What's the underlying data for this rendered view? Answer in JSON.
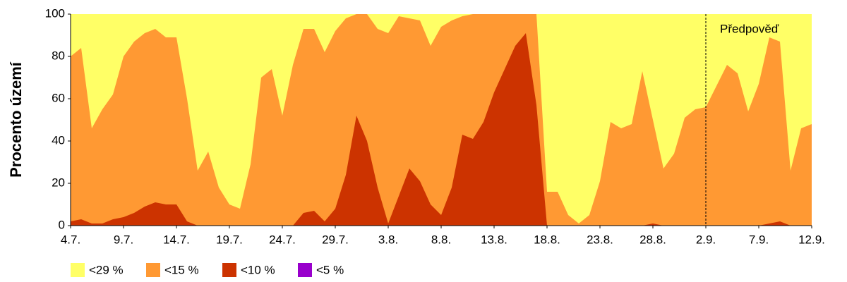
{
  "chart_data": {
    "type": "area",
    "y_label": "Procento území",
    "categories": [
      "4.7.",
      null,
      null,
      null,
      null,
      "9.7.",
      null,
      null,
      null,
      null,
      "14.7.",
      null,
      null,
      null,
      null,
      "19.7.",
      null,
      null,
      null,
      null,
      "24.7.",
      null,
      null,
      null,
      null,
      "29.7.",
      null,
      null,
      null,
      null,
      "3.8.",
      null,
      null,
      null,
      null,
      "8.8.",
      null,
      null,
      null,
      null,
      "13.8.",
      null,
      null,
      null,
      null,
      "18.8.",
      null,
      null,
      null,
      null,
      "23.8.",
      null,
      null,
      null,
      null,
      "28.8.",
      null,
      null,
      null,
      null,
      "2.9.",
      null,
      null,
      null,
      null,
      "7.9.",
      null,
      null,
      null,
      null,
      "12.9."
    ],
    "series": [
      {
        "name": "<29 %",
        "color": "#ffff66",
        "values": [
          100,
          100,
          100,
          100,
          100,
          100,
          100,
          100,
          100,
          100,
          100,
          100,
          100,
          100,
          100,
          100,
          100,
          100,
          100,
          100,
          100,
          100,
          100,
          100,
          100,
          100,
          100,
          100,
          100,
          100,
          100,
          100,
          100,
          100,
          100,
          100,
          100,
          100,
          100,
          100,
          100,
          100,
          100,
          100,
          100,
          100,
          100,
          100,
          100,
          100,
          100,
          100,
          100,
          100,
          100,
          100,
          100,
          100,
          100,
          100,
          100,
          100,
          100,
          100,
          100,
          100,
          100,
          100,
          100,
          100,
          100
        ]
      },
      {
        "name": "<15 %",
        "color": "#ff9933",
        "values": [
          80,
          84,
          46,
          55,
          62,
          80,
          87,
          91,
          93,
          89,
          89,
          60,
          26,
          35,
          18,
          10,
          8,
          29,
          70,
          74,
          52,
          76,
          93,
          93,
          82,
          92,
          98,
          100,
          100,
          93,
          91,
          99,
          98,
          97,
          85,
          94,
          97,
          99,
          100,
          100,
          100,
          100,
          100,
          100,
          100,
          16,
          16,
          5,
          1,
          5,
          21,
          49,
          46,
          48,
          73,
          50,
          27,
          34,
          51,
          55,
          56,
          66,
          76,
          72,
          54,
          67,
          89,
          87,
          26,
          46,
          48
        ]
      },
      {
        "name": "<10 %",
        "color": "#cc3300",
        "values": [
          2,
          3,
          1,
          1,
          3,
          4,
          6,
          9,
          11,
          10,
          10,
          2,
          0,
          0,
          0,
          0,
          0,
          0,
          0,
          0,
          0,
          0,
          6,
          7,
          2,
          8,
          24,
          52,
          40,
          18,
          1,
          14,
          27,
          21,
          10,
          5,
          18,
          43,
          41,
          49,
          63,
          74,
          85,
          91,
          57,
          0,
          0,
          0,
          0,
          0,
          0,
          0,
          0,
          0,
          0,
          1,
          0,
          0,
          0,
          0,
          0,
          0,
          0,
          0,
          0,
          0,
          1,
          2,
          0,
          0,
          0
        ]
      },
      {
        "name": "<5 %",
        "color": "#9900cc",
        "values": [
          0,
          0,
          0,
          0,
          0,
          0,
          0,
          0,
          0,
          0,
          0,
          0,
          0,
          0,
          0,
          0,
          0,
          0,
          0,
          0,
          0,
          0,
          0,
          0,
          0,
          0,
          0,
          0,
          0,
          0,
          0,
          0,
          0,
          0,
          0,
          0,
          0,
          0,
          0,
          0,
          0,
          0,
          0,
          0,
          0,
          0,
          0,
          0,
          0,
          0,
          0,
          0,
          0,
          0,
          0,
          0,
          0,
          0,
          0,
          0,
          0,
          0,
          0,
          0,
          0,
          0,
          0,
          0,
          0,
          0,
          0
        ]
      }
    ],
    "ylim": [
      0,
      100
    ],
    "yticks": [
      0,
      20,
      40,
      60,
      80,
      100
    ],
    "annotation": {
      "text": "Předpověď",
      "x": "2.9."
    }
  }
}
